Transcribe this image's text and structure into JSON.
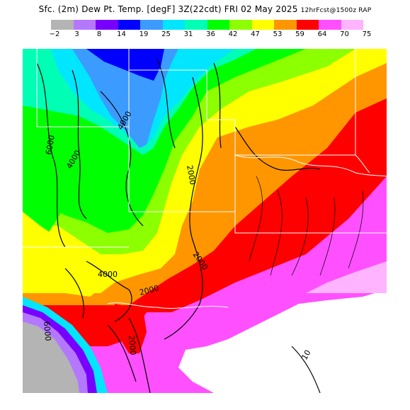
{
  "header": {
    "title_main": "Sfc. (2m) Dew Pt. Temp. [degF] 3Z(22cdt) FRI 02 May 2025",
    "title_small": "12hrFcst@1500z RAP"
  },
  "legend": {
    "ticks": [
      "−2",
      "3",
      "8",
      "14",
      "19",
      "25",
      "31",
      "36",
      "42",
      "47",
      "53",
      "59",
      "64",
      "70",
      "75"
    ],
    "colors": [
      "#b4b4b4",
      "#b478ff",
      "#7800ff",
      "#0000ff",
      "#3c9bff",
      "#00e6ff",
      "#00ffb4",
      "#00ff00",
      "#8cff00",
      "#ffff00",
      "#ff9600",
      "#ff0000",
      "#ff50ff",
      "#ffb4ff"
    ]
  },
  "map": {
    "contour_labels": [
      "6000",
      "4000",
      "4000",
      "2000",
      "2000",
      "4000",
      "2000",
      "2000",
      "6000",
      "10"
    ]
  }
}
